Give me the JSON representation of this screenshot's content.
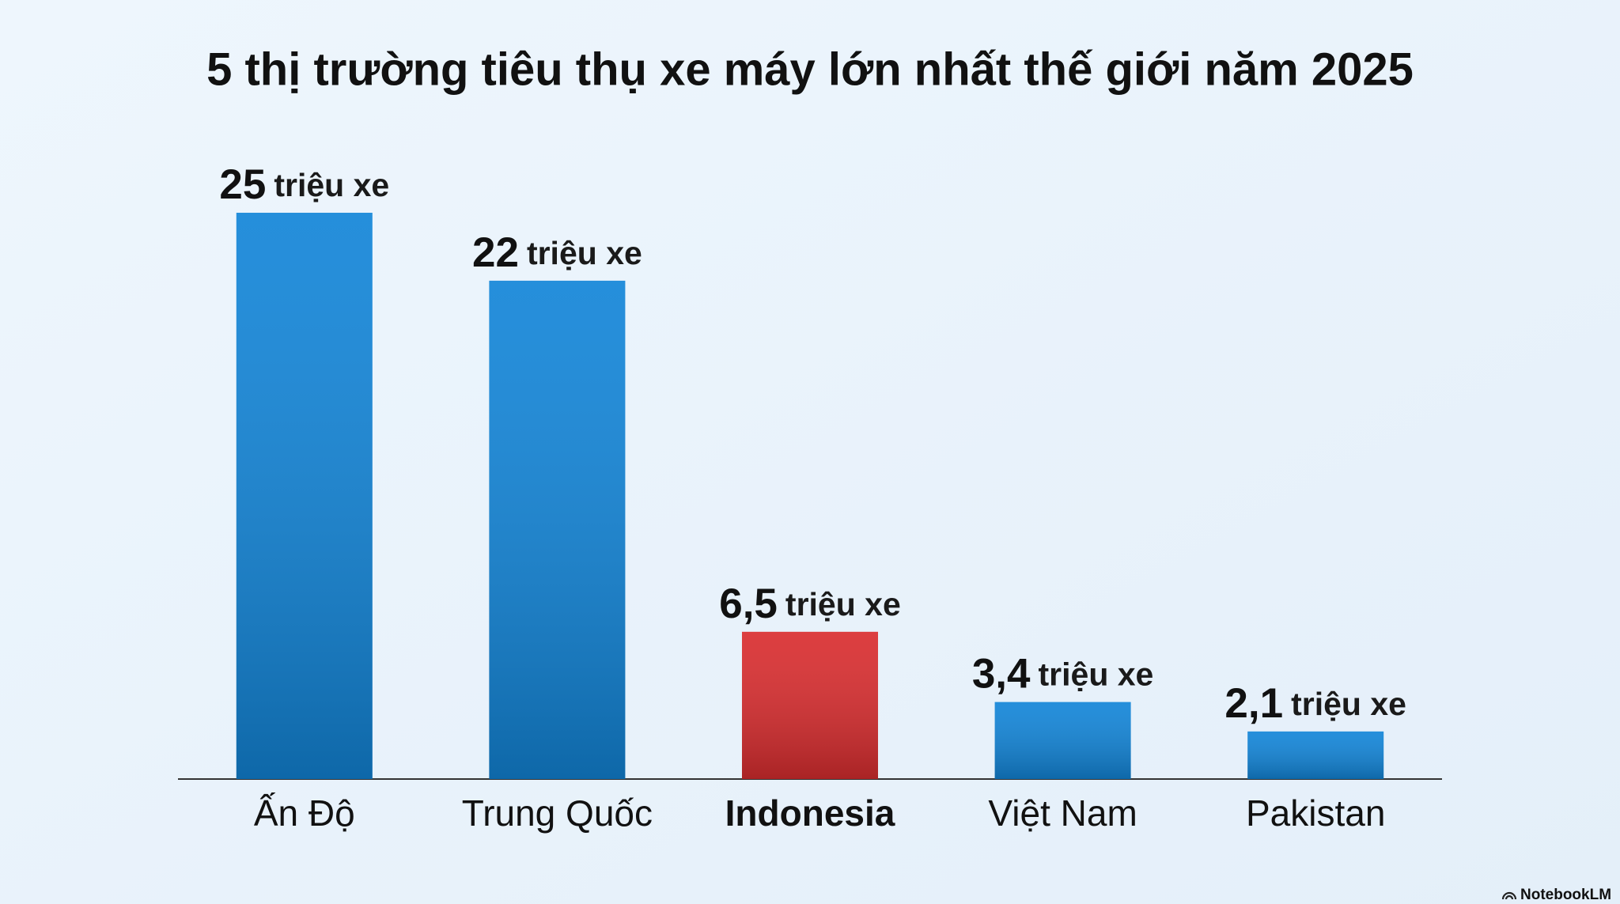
{
  "chart_data": {
    "type": "bar",
    "title": "5 thị trường tiêu thụ xe máy lớn nhất thế giới năm 2025",
    "categories": [
      "Ấn Độ",
      "Trung Quốc",
      "Indonesia",
      "Việt Nam",
      "Pakistan"
    ],
    "values": [
      25,
      22,
      6.5,
      3.4,
      2.1
    ],
    "value_labels": [
      "25",
      "22",
      "6,5",
      "3,4",
      "2,1"
    ],
    "value_label_unit": "triệu xe",
    "colors": [
      "#1285d8",
      "#1285d8",
      "#d92d2f",
      "#1285d8",
      "#1285d8"
    ],
    "highlight_index": 2
  },
  "watermark": "NotebookLM"
}
